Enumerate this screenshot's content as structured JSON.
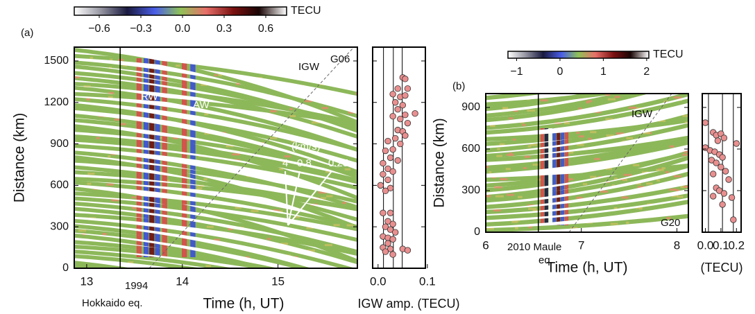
{
  "chart_data": [
    {
      "type": "heatmap",
      "panel": "(a)",
      "xlim": [
        12.87,
        15.83
      ],
      "ylim": [
        0,
        1600
      ],
      "xticks": [
        13,
        14,
        15
      ],
      "yticks": [
        0,
        300,
        600,
        900,
        1200,
        1500
      ],
      "xlabel": "Time (h, UT)",
      "ylabel": "Distance (km)",
      "event_time": 13.35,
      "event_label": [
        "1994",
        "Hokkaido eq."
      ],
      "annotations": [
        "RW",
        "AW",
        "IGW",
        "G06"
      ],
      "velocity_unit": "(km/s)",
      "velocities": [
        4,
        0.8,
        0.25
      ],
      "colorbar": {
        "label": "TECU",
        "lim": [
          -0.78,
          0.75
        ],
        "ticks": [
          {
            "value": -0.6,
            "label": "−0.6"
          },
          {
            "value": -0.3,
            "label": "−0.3"
          },
          {
            "value": 0,
            "label": "0.0"
          },
          0.3,
          0.6
        ]
      }
    },
    {
      "type": "scatter",
      "xlim": [
        -0.011,
        0.096
      ],
      "ylim": [
        0,
        1600
      ],
      "yticks": [
        0,
        300,
        600,
        900,
        1200,
        1500
      ],
      "xticks": [
        {
          "value": 0,
          "label": "0.0"
        },
        0.1
      ],
      "xlabel": "IGW amp. (TECU)",
      "color": "#e98f8f",
      "ref_lines": [
        0.011,
        0.031,
        0.049
      ],
      "x": [
        0.05,
        0.055,
        0.04,
        0.06,
        0.03,
        0.045,
        0.055,
        0.035,
        0.05,
        0.04,
        0.075,
        0.055,
        0.03,
        0.045,
        0.06,
        0.04,
        0.05,
        0.055,
        0.035,
        0.02,
        0.045,
        0.03,
        0.015,
        0.025,
        0.04,
        0.01,
        0.02,
        0.03,
        0.01,
        0.02,
        0.005,
        0.025,
        0.015,
        0.01,
        0.025,
        0.02,
        0.03,
        0.015,
        0.025,
        0.035,
        0.01,
        0.02,
        0.03,
        0.02,
        0.01,
        0.025,
        0.05,
        0.06,
        0.015,
        0.03
      ],
      "y": [
        1380,
        1370,
        1300,
        1300,
        1260,
        1240,
        1250,
        1200,
        1180,
        1150,
        1120,
        1110,
        1100,
        1080,
        1050,
        1000,
        990,
        960,
        940,
        920,
        900,
        860,
        850,
        800,
        780,
        760,
        720,
        700,
        680,
        640,
        600,
        580,
        560,
        400,
        400,
        340,
        320,
        300,
        280,
        260,
        230,
        220,
        210,
        180,
        150,
        140,
        140,
        130,
        120,
        100
      ]
    },
    {
      "type": "heatmap",
      "panel": "(b)",
      "xlim": [
        6,
        8.12
      ],
      "ylim": [
        0,
        1000
      ],
      "xticks": [
        6,
        7,
        8
      ],
      "yticks": [
        0,
        300,
        600,
        900
      ],
      "xlabel": "Time (h, UT)",
      "ylabel": "Distance (km)",
      "event_time": 6.55,
      "event_label": [
        "2010 Maule",
        "eq."
      ],
      "annotations": [
        "IGW",
        "G20"
      ],
      "colorbar": {
        "label": "TECU",
        "lim": [
          -1.2,
          2.05
        ],
        "ticks": [
          {
            "value": -1,
            "label": "−1"
          },
          0,
          1,
          2
        ]
      }
    },
    {
      "type": "scatter",
      "xlim": [
        -0.02,
        0.23
      ],
      "ylim": [
        0,
        1000
      ],
      "yticks": [
        0,
        300,
        600,
        900
      ],
      "xticks": [
        {
          "value": 0,
          "label": "0.0"
        },
        0.1,
        0.2
      ],
      "xlabel": "(TECU)",
      "color": "#e98f8f",
      "ref_lines": [
        0.02,
        0.11,
        0.18
      ],
      "x": [
        0.0,
        0.05,
        0.07,
        0.1,
        0.12,
        0.08,
        0.0,
        0.03,
        0.06,
        0.2,
        0.09,
        0.11,
        0.04,
        0.07,
        0.1,
        0.13,
        0.05,
        0.15,
        0.07,
        0.09,
        0.12,
        0.05,
        0.17,
        0.11,
        0.18
      ],
      "y": [
        790,
        720,
        700,
        710,
        680,
        660,
        610,
        590,
        580,
        640,
        560,
        540,
        520,
        500,
        470,
        440,
        420,
        380,
        320,
        300,
        280,
        260,
        250,
        200,
        90
      ]
    }
  ]
}
